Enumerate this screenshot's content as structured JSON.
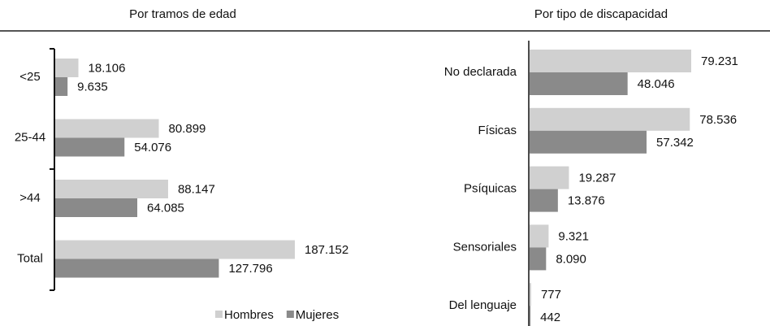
{
  "chart_data": [
    {
      "type": "bar",
      "orientation": "horizontal",
      "title": "Por tramos de edad",
      "categories": [
        "<25",
        "25-44",
        ">44",
        "Total"
      ],
      "series": [
        {
          "name": "Hombres",
          "color": "#d0d0d0",
          "values": [
            18106,
            80899,
            88147,
            187152
          ],
          "value_labels": [
            "18.106",
            "80.899",
            "88.147",
            "187.152"
          ]
        },
        {
          "name": "Mujeres",
          "color": "#8a8a8a",
          "values": [
            9635,
            54076,
            64085,
            127796
          ],
          "value_labels": [
            "9.635",
            "54.076",
            "64.085",
            "127.796"
          ]
        }
      ],
      "legend": "bottom"
    },
    {
      "type": "bar",
      "orientation": "horizontal",
      "title": "Por tipo de discapacidad",
      "categories": [
        "No declarada",
        "Físicas",
        "Psíquicas",
        "Sensoriales",
        "Del lenguaje"
      ],
      "series": [
        {
          "name": "Hombres",
          "color": "#d0d0d0",
          "values": [
            79231,
            78536,
            19287,
            9321,
            777
          ],
          "value_labels": [
            "79.231",
            "78.536",
            "19.287",
            "9.321",
            "777"
          ]
        },
        {
          "name": "Mujeres",
          "color": "#8a8a8a",
          "values": [
            48046,
            57342,
            13876,
            8090,
            442
          ],
          "value_labels": [
            "48.046",
            "57.342",
            "13.876",
            "8.090",
            "442"
          ]
        }
      ]
    }
  ]
}
